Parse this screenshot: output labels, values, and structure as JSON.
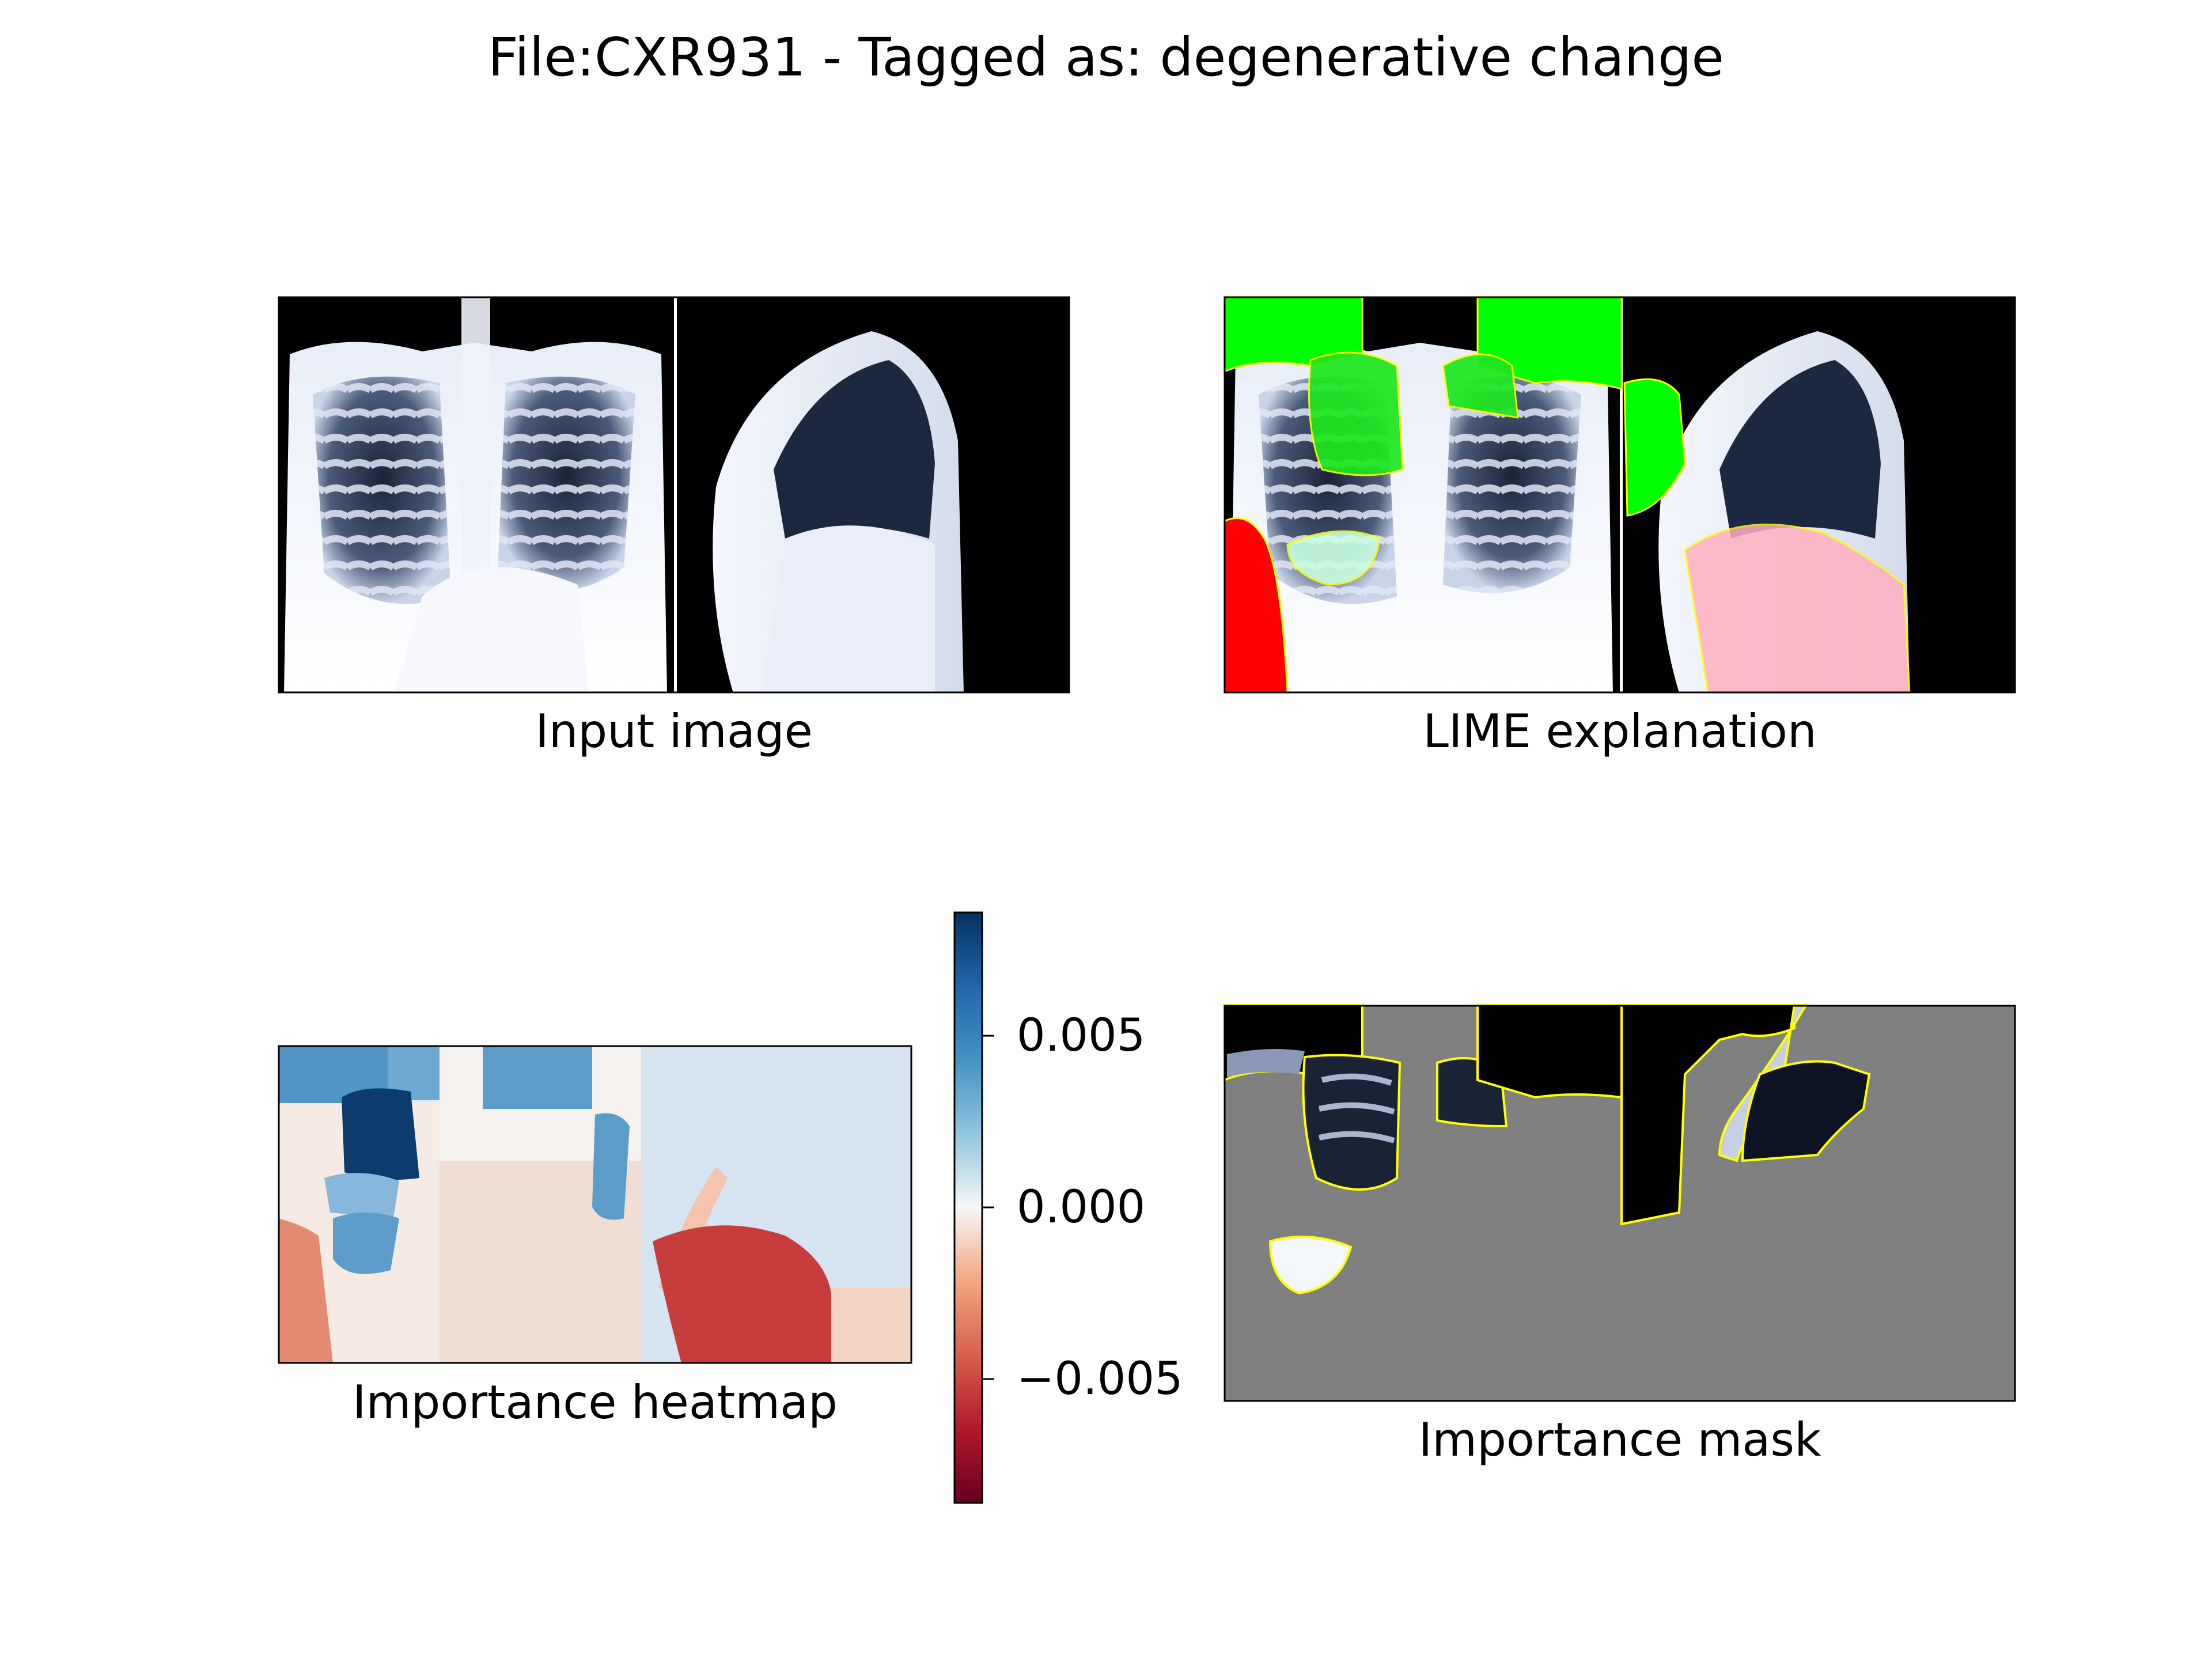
{
  "figure": {
    "title": "File:CXR931 - Tagged as: degenerative change"
  },
  "panels": {
    "input": {
      "label": "Input image"
    },
    "lime": {
      "label": "LIME explanation"
    },
    "heatmap": {
      "label": "Importance heatmap"
    },
    "mask": {
      "label": "Importance mask"
    }
  },
  "colorbar": {
    "ticks": [
      "0.005",
      "0.000",
      "−0.005"
    ],
    "colormap": "RdBu",
    "colors": {
      "low": "#67001f",
      "mid": "#f7f7f7",
      "high": "#053061"
    }
  },
  "colors": {
    "positive_region": "#00ff00",
    "negative_region": "#ff0000",
    "boundary": "#ffff00",
    "mask_background": "#808080"
  }
}
